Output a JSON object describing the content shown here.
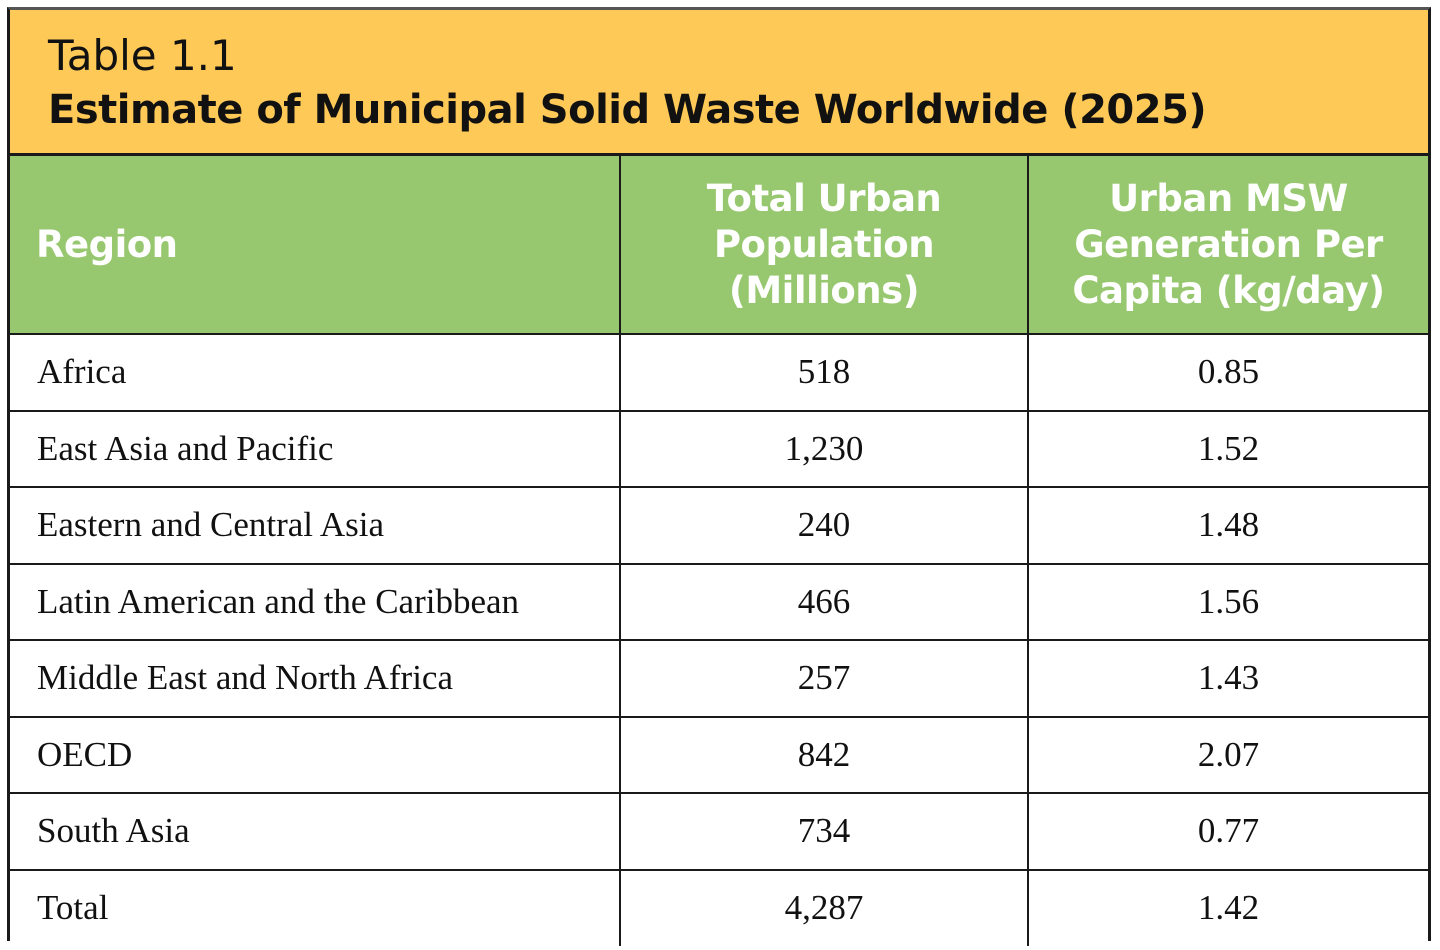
{
  "title": {
    "label": "Table 1.1",
    "heading": "Estimate of Municipal Solid Waste Worldwide (2025)"
  },
  "colors": {
    "title_band": "#fec957",
    "header": "#97c76f"
  },
  "columns": [
    "Region",
    "Total Urban Population (Millions)",
    "Urban MSW Generation Per Capita (kg/day)"
  ],
  "rows": [
    {
      "region": "Africa",
      "population": "518",
      "per_capita": "0.85"
    },
    {
      "region": "East Asia and Pacific",
      "population": "1,230",
      "per_capita": "1.52"
    },
    {
      "region": "Eastern and Central Asia",
      "population": "240",
      "per_capita": "1.48"
    },
    {
      "region": "Latin American and the Caribbean",
      "population": "466",
      "per_capita": "1.56"
    },
    {
      "region": "Middle East and North Africa",
      "population": "257",
      "per_capita": "1.43"
    },
    {
      "region": "OECD",
      "population": "842",
      "per_capita": "2.07"
    },
    {
      "region": "South Asia",
      "population": "734",
      "per_capita": "0.77"
    },
    {
      "region": "Total",
      "population": "4,287",
      "per_capita": "1.42"
    }
  ]
}
